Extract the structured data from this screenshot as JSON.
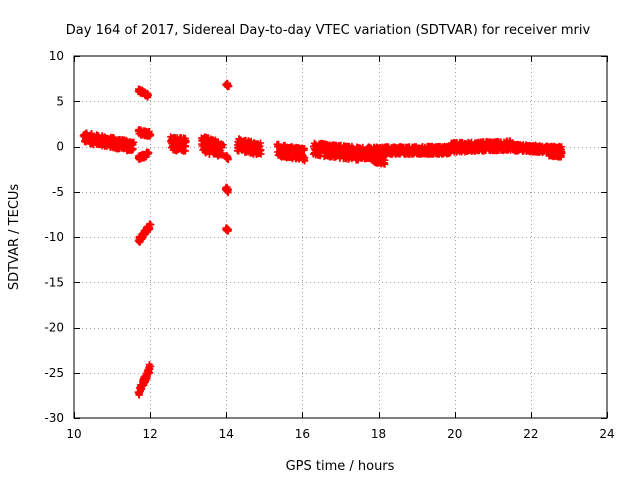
{
  "chart_data": {
    "type": "scatter",
    "title": "Day 164 of 2017, Sidereal Day-to-day VTEC variation (SDTVAR) for receiver mriv",
    "xlabel": "GPS time / hours",
    "ylabel": "SDTVAR / TECUs",
    "xlim": [
      10,
      24
    ],
    "ylim": [
      -30,
      10
    ],
    "xticks": [
      10,
      12,
      14,
      16,
      18,
      20,
      22,
      24
    ],
    "yticks": [
      -30,
      -25,
      -20,
      -15,
      -10,
      -5,
      0,
      5,
      10
    ],
    "grid": true,
    "marker": "+",
    "series": [
      {
        "name": "SDTVAR",
        "color": "#ff0000",
        "segments": [
          {
            "x": [
              10.25,
              11.55
            ],
            "y": [
              1.0,
              0.0
            ],
            "spread": 1.2
          },
          {
            "x": [
              11.7,
              11.95
            ],
            "y": [
              6.2,
              5.6
            ],
            "spread": 0.4
          },
          {
            "x": [
              11.7,
              12.0
            ],
            "y": [
              1.6,
              1.4
            ],
            "spread": 0.6
          },
          {
            "x": [
              11.7,
              11.95
            ],
            "y": [
              -1.3,
              -0.8
            ],
            "spread": 0.5
          },
          {
            "x": [
              11.7,
              12.0
            ],
            "y": [
              -10.4,
              -8.7
            ],
            "spread": 0.6
          },
          {
            "x": [
              11.7,
              12.0
            ],
            "y": [
              -27.3,
              -24.4
            ],
            "spread": 0.8
          },
          {
            "x": [
              12.55,
              12.95
            ],
            "y": [
              0.4,
              0.1
            ],
            "spread": 1.6
          },
          {
            "x": [
              13.35,
              13.9
            ],
            "y": [
              0.3,
              -0.4
            ],
            "spread": 1.8
          },
          {
            "x": [
              14.0,
              14.05
            ],
            "y": [
              6.9,
              6.7
            ],
            "spread": 0.3
          },
          {
            "x": [
              14.0,
              14.05
            ],
            "y": [
              -4.6,
              -5.0
            ],
            "spread": 0.4
          },
          {
            "x": [
              14.0,
              14.05
            ],
            "y": [
              -9.1,
              -9.3
            ],
            "spread": 0.3
          },
          {
            "x": [
              14.0,
              14.05
            ],
            "y": [
              -1.1,
              -1.3
            ],
            "spread": 0.3
          },
          {
            "x": [
              14.3,
              14.9
            ],
            "y": [
              0.2,
              -0.3
            ],
            "spread": 1.4
          },
          {
            "x": [
              15.35,
              16.05
            ],
            "y": [
              -0.4,
              -0.9
            ],
            "spread": 1.4
          },
          {
            "x": [
              16.3,
              17.5
            ],
            "y": [
              -0.3,
              -0.8
            ],
            "spread": 1.5
          },
          {
            "x": [
              17.5,
              18.15
            ],
            "y": [
              -0.8,
              -1.6
            ],
            "spread": 1.0
          },
          {
            "x": [
              17.5,
              19.9
            ],
            "y": [
              -0.5,
              -0.4
            ],
            "spread": 0.9
          },
          {
            "x": [
              19.9,
              21.5
            ],
            "y": [
              -0.1,
              0.1
            ],
            "spread": 1.1
          },
          {
            "x": [
              21.5,
              22.8
            ],
            "y": [
              -0.1,
              -0.4
            ],
            "spread": 0.8
          },
          {
            "x": [
              22.5,
              22.8
            ],
            "y": [
              -0.8,
              -0.9
            ],
            "spread": 0.6
          }
        ]
      }
    ]
  }
}
